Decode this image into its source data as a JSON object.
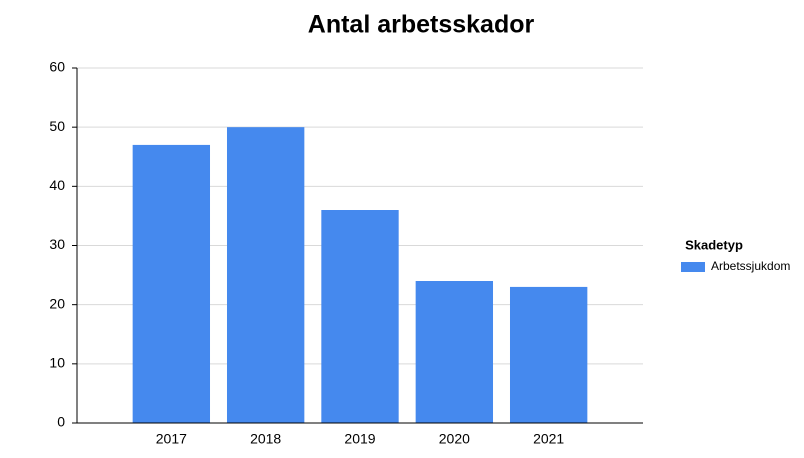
{
  "chart_data": {
    "type": "bar",
    "title": "Antal arbetsskador",
    "categories": [
      "2017",
      "2018",
      "2019",
      "2020",
      "2021"
    ],
    "series": [
      {
        "name": "Arbetssjukdom",
        "color": "#4589ee",
        "values": [
          47,
          50,
          36,
          24,
          23
        ]
      }
    ],
    "legend_title": "Skadetyp",
    "legend": "right",
    "ylim": [
      0,
      60
    ],
    "yticks": [
      0,
      10,
      20,
      30,
      40,
      50,
      60
    ],
    "grid": true
  }
}
